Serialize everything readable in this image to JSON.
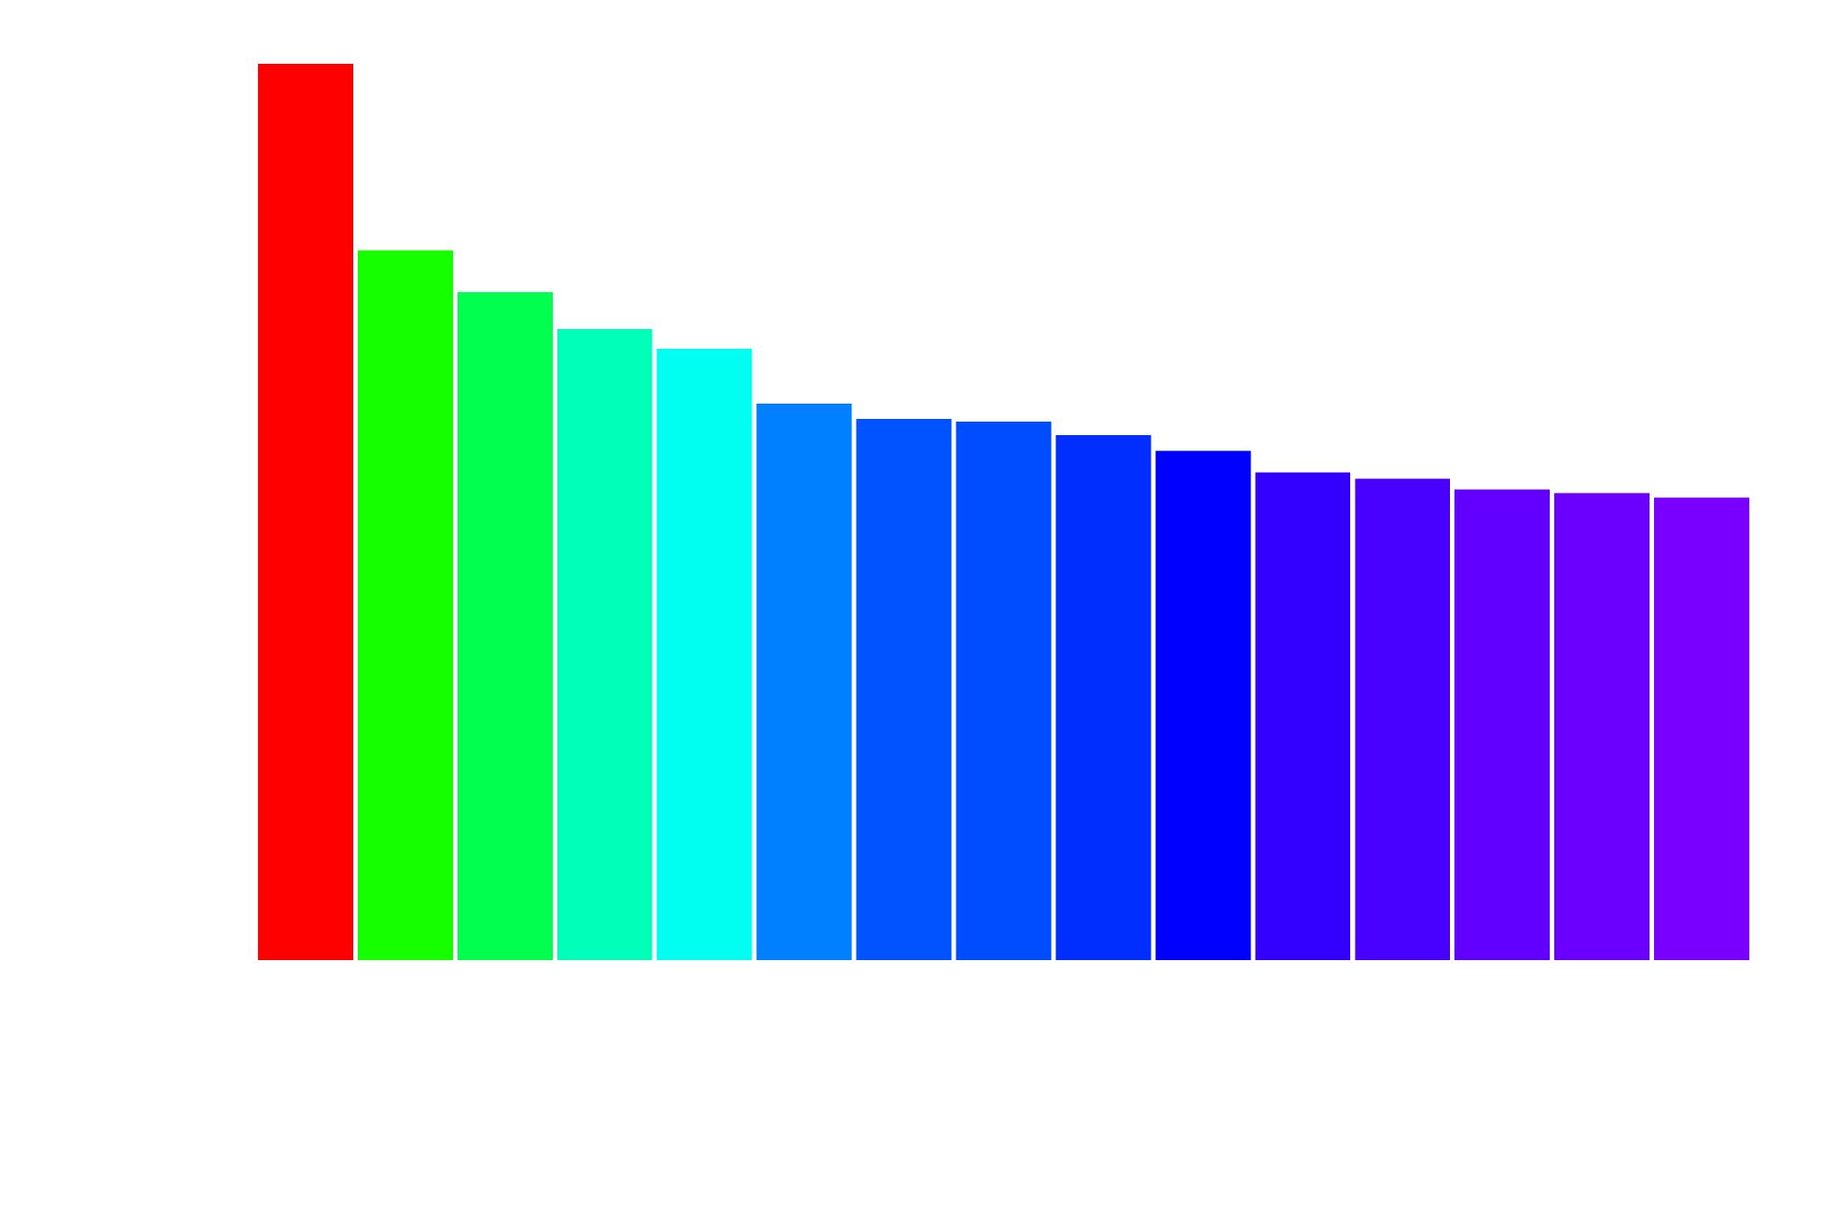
{
  "chart_data": {
    "type": "bar",
    "title": "",
    "xlabel": "",
    "ylabel": "",
    "ylim": [
      0,
      100
    ],
    "grid": false,
    "legend": "none",
    "axes_visible": false,
    "values": [
      100.0,
      79.2,
      74.5,
      70.4,
      68.2,
      62.1,
      60.4,
      60.1,
      58.6,
      56.8,
      54.4,
      53.7,
      52.5,
      52.1,
      51.6
    ],
    "colors": [
      "#ff0000",
      "#16ff00",
      "#00ff4e",
      "#00ffb8",
      "#00fff0",
      "#0080ff",
      "#0053ff",
      "#004dff",
      "#002eff",
      "#0000ff",
      "#3300ff",
      "#4800ff",
      "#6200ff",
      "#6b00ff",
      "#7900ff"
    ]
  }
}
